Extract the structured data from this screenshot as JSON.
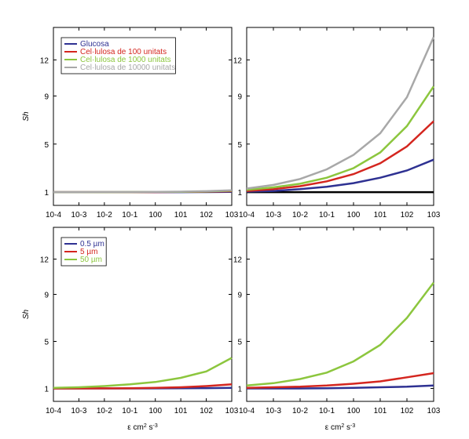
{
  "chart_data": [
    {
      "type": "line",
      "ylabel": "Sh",
      "xscale": "log",
      "legend": "upper left",
      "x": [
        0.0001,
        0.001,
        0.01,
        0.1,
        1,
        10,
        100,
        1000
      ],
      "xlim": [
        0.0001,
        1000
      ],
      "xticks": [
        {
          "value": 0.0001,
          "label": "10-4"
        },
        {
          "value": 0.001,
          "label": "10-3"
        },
        {
          "value": 0.01,
          "label": "10-2"
        },
        {
          "value": 0.1,
          "label": "10-1"
        },
        {
          "value": 1,
          "label": "100"
        },
        {
          "value": 10,
          "label": "101"
        },
        {
          "value": 100,
          "label": "102"
        },
        {
          "value": 1000,
          "label": "103"
        }
      ],
      "ylim": [
        -0.1,
        14.7
      ],
      "yticks": [
        1,
        5,
        9,
        12
      ],
      "series": [
        {
          "name": "Glucosa",
          "color": "#2e3192",
          "values": [
            1,
            1,
            1,
            1,
            1,
            1,
            1.01,
            1.03
          ]
        },
        {
          "name": "Cel·lulosa de 100 unitats",
          "color": "#d4261f",
          "values": [
            1,
            1,
            1,
            1,
            1.01,
            1.02,
            1.04,
            1.08
          ]
        },
        {
          "name": "Cel·lulosa de 1000 unitats",
          "color": "#8cc63e",
          "values": [
            1,
            1,
            1,
            1.01,
            1.02,
            1.03,
            1.06,
            1.12
          ]
        },
        {
          "name": "Cel·lulosa de 10000 unitats",
          "color": "#a8a8a8",
          "values": [
            1,
            1,
            1.01,
            1.01,
            1.02,
            1.04,
            1.08,
            1.15
          ]
        }
      ]
    },
    {
      "type": "line",
      "xscale": "log",
      "x": [
        0.0001,
        0.001,
        0.01,
        0.1,
        1,
        10,
        100,
        1000
      ],
      "xlim": [
        0.0001,
        1000
      ],
      "xticks": [
        {
          "value": 0.0001,
          "label": "10-4"
        },
        {
          "value": 0.001,
          "label": "10-3"
        },
        {
          "value": 0.01,
          "label": "10-2"
        },
        {
          "value": 0.1,
          "label": "10-1"
        },
        {
          "value": 1,
          "label": "100"
        },
        {
          "value": 10,
          "label": "101"
        },
        {
          "value": 100,
          "label": "102"
        },
        {
          "value": 1000,
          "label": "103"
        }
      ],
      "ylim": [
        -0.1,
        14.7
      ],
      "yticks": [
        1,
        5,
        9,
        12
      ],
      "series": [
        {
          "color": "#000000",
          "values": [
            1,
            1,
            1,
            1,
            1,
            1,
            1,
            1
          ]
        },
        {
          "color": "#2e3192",
          "values": [
            1.05,
            1.1,
            1.25,
            1.45,
            1.75,
            2.2,
            2.8,
            3.7
          ]
        },
        {
          "color": "#d4261f",
          "values": [
            1.1,
            1.25,
            1.5,
            1.9,
            2.5,
            3.4,
            4.8,
            6.9
          ]
        },
        {
          "color": "#8cc63e",
          "values": [
            1.2,
            1.4,
            1.7,
            2.2,
            3.0,
            4.3,
            6.5,
            9.8
          ]
        },
        {
          "color": "#a8a8a8",
          "values": [
            1.3,
            1.6,
            2.1,
            2.9,
            4.1,
            5.9,
            8.9,
            13.9
          ]
        }
      ]
    },
    {
      "type": "line",
      "ylabel": "Sh",
      "xlabel": "ε cm2 s-3",
      "xscale": "log",
      "legend": "upper left",
      "x": [
        0.0001,
        0.001,
        0.01,
        0.1,
        1,
        10,
        100,
        1000
      ],
      "xlim": [
        0.0001,
        1000
      ],
      "xticks": [
        {
          "value": 0.0001,
          "label": "10-4"
        },
        {
          "value": 0.001,
          "label": "10-3"
        },
        {
          "value": 0.01,
          "label": "10-2"
        },
        {
          "value": 0.1,
          "label": "10-1"
        },
        {
          "value": 1,
          "label": "100"
        },
        {
          "value": 10,
          "label": "101"
        },
        {
          "value": 100,
          "label": "102"
        },
        {
          "value": 1000,
          "label": "103"
        }
      ],
      "ylim": [
        -0.1,
        14.7
      ],
      "yticks": [
        1,
        5,
        9,
        12
      ],
      "series": [
        {
          "name": "0.5 µm",
          "color": "#2e3192",
          "values": [
            1,
            1,
            1,
            1,
            1.01,
            1.02,
            1.03,
            1.05
          ]
        },
        {
          "name": "5 µm",
          "color": "#d4261f",
          "values": [
            1,
            1,
            1.01,
            1.02,
            1.05,
            1.1,
            1.2,
            1.35
          ]
        },
        {
          "name": "50 µm",
          "color": "#8cc63e",
          "values": [
            1.05,
            1.1,
            1.2,
            1.35,
            1.55,
            1.9,
            2.45,
            3.6
          ]
        }
      ]
    },
    {
      "type": "line",
      "xlabel": "ε cm2 s-3",
      "xscale": "log",
      "x": [
        0.0001,
        0.001,
        0.01,
        0.1,
        1,
        10,
        100,
        1000
      ],
      "xlim": [
        0.0001,
        1000
      ],
      "xticks": [
        {
          "value": 0.0001,
          "label": "10-4"
        },
        {
          "value": 0.001,
          "label": "10-3"
        },
        {
          "value": 0.01,
          "label": "10-2"
        },
        {
          "value": 0.1,
          "label": "10-1"
        },
        {
          "value": 1,
          "label": "100"
        },
        {
          "value": 10,
          "label": "101"
        },
        {
          "value": 100,
          "label": "102"
        },
        {
          "value": 1000,
          "label": "103"
        }
      ],
      "ylim": [
        -0.1,
        14.7
      ],
      "yticks": [
        1,
        5,
        9,
        12
      ],
      "series": [
        {
          "color": "#2e3192",
          "values": [
            1,
            1,
            1,
            1.02,
            1.05,
            1.1,
            1.15,
            1.25
          ]
        },
        {
          "color": "#d4261f",
          "values": [
            1.05,
            1.1,
            1.15,
            1.25,
            1.4,
            1.6,
            1.95,
            2.3
          ]
        },
        {
          "color": "#8cc63e",
          "values": [
            1.25,
            1.45,
            1.8,
            2.35,
            3.3,
            4.7,
            7.0,
            10.0
          ]
        }
      ]
    }
  ]
}
